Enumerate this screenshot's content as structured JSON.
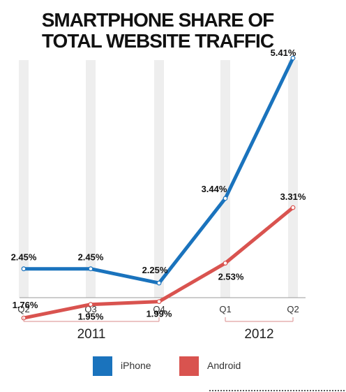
{
  "chart_data": {
    "type": "line",
    "title_lines": [
      "SMARTPHONE SHARE OF",
      "TOTAL WEBSITE TRAFFIC"
    ],
    "categories": [
      "Q2",
      "Q3",
      "Q4",
      "Q1",
      "Q2"
    ],
    "groups": [
      {
        "label": "2011",
        "from": 0,
        "to": 2
      },
      {
        "label": "2012",
        "from": 3,
        "to": 4
      }
    ],
    "series": [
      {
        "name": "iPhone",
        "color": "#1a73bd",
        "values": [
          2.45,
          2.45,
          2.25,
          3.44,
          5.41
        ],
        "labels": [
          "2.45%",
          "2.45%",
          "2.25%",
          "3.44%",
          "5.41%"
        ]
      },
      {
        "name": "Android",
        "color": "#d9534f",
        "values": [
          1.76,
          1.95,
          1.99,
          2.53,
          3.31
        ],
        "labels": [
          "1.76%",
          "1.95%",
          "1.99%",
          "2.53%",
          "3.31%"
        ]
      }
    ],
    "ylim": [
      1.0,
      6.0
    ],
    "grid": "vertical bands",
    "legend": "bottom"
  }
}
